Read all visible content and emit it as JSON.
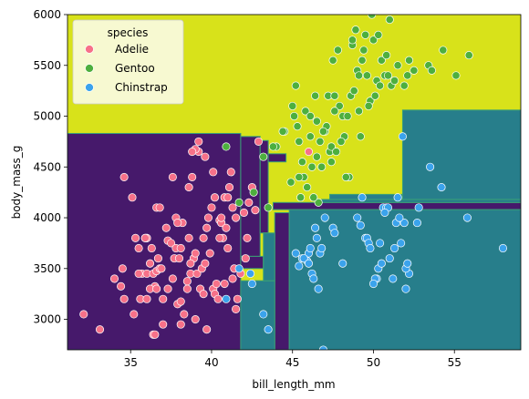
{
  "chart_data": {
    "type": "scatter",
    "title": "",
    "xlabel": "bill_length_mm",
    "ylabel": "body_mass_g",
    "xlim": [
      31.1,
      59.1
    ],
    "ylim": [
      2700,
      6000
    ],
    "xticks": [
      35,
      40,
      45,
      50,
      55
    ],
    "yticks": [
      3000,
      3500,
      4000,
      4500,
      5000,
      5500,
      6000
    ],
    "grid": false,
    "legend": {
      "title": "species",
      "placement": "top-left"
    },
    "background": {
      "type": "decision-regions",
      "colors": {
        "purple": "#46196b",
        "teal": "#277e8b",
        "yellow": "#d8e21a",
        "boundary": "#3aa276"
      },
      "regions": [
        {
          "class": "Adelie",
          "color": "purple",
          "x": [
            31.1,
            41.8
          ],
          "y": [
            2700,
            4830
          ]
        },
        {
          "class": "Adelie",
          "color": "purple",
          "x": [
            41.8,
            43.0
          ],
          "y": [
            3620,
            4800
          ]
        },
        {
          "class": "Adelie",
          "color": "purple",
          "x": [
            41.8,
            43.2
          ],
          "y": [
            3500,
            3620
          ]
        },
        {
          "class": "Adelie",
          "color": "purple",
          "x": [
            43.0,
            43.5
          ],
          "y": [
            3850,
            4760
          ]
        },
        {
          "class": "Adelie",
          "color": "purple",
          "x": [
            43.9,
            44.8
          ],
          "y": [
            2700,
            4050
          ]
        },
        {
          "class": "Adelie",
          "color": "purple",
          "x": [
            43.5,
            44.6
          ],
          "y": [
            4550,
            4630
          ]
        },
        {
          "class": "Adelie",
          "color": "purple",
          "x": [
            43.8,
            59.1
          ],
          "y": [
            4080,
            4150
          ]
        },
        {
          "class": "Chinstrap",
          "color": "teal",
          "x": [
            41.8,
            43.9
          ],
          "y": [
            2700,
            3380
          ]
        },
        {
          "class": "Chinstrap",
          "color": "teal",
          "x": [
            43.2,
            43.9
          ],
          "y": [
            3380,
            3850
          ]
        },
        {
          "class": "Chinstrap",
          "color": "teal",
          "x": [
            44.8,
            59.1
          ],
          "y": [
            2700,
            4080
          ]
        },
        {
          "class": "Chinstrap",
          "color": "teal",
          "x": [
            46.8,
            59.1
          ],
          "y": [
            4150,
            4180
          ]
        },
        {
          "class": "Chinstrap",
          "color": "teal",
          "x": [
            51.8,
            59.1
          ],
          "y": [
            4180,
            5060
          ]
        },
        {
          "class": "Chinstrap",
          "color": "teal",
          "x": [
            47.3,
            51.8
          ],
          "y": [
            4180,
            4230
          ]
        }
      ]
    },
    "series": [
      {
        "name": "Adelie",
        "color": "#f77189",
        "points": [
          [
            32.1,
            3050
          ],
          [
            33.1,
            2900
          ],
          [
            34.6,
            3200
          ],
          [
            34.0,
            3400
          ],
          [
            34.5,
            3500
          ],
          [
            34.4,
            3325
          ],
          [
            34.6,
            4400
          ],
          [
            35.1,
            4200
          ],
          [
            35.3,
            3800
          ],
          [
            35.5,
            3700
          ],
          [
            35.7,
            3450
          ],
          [
            35.9,
            3800
          ],
          [
            35.2,
            3050
          ],
          [
            35.6,
            3200
          ],
          [
            36.0,
            3450
          ],
          [
            36.0,
            3800
          ],
          [
            36.2,
            3550
          ],
          [
            36.0,
            3200
          ],
          [
            36.3,
            3700
          ],
          [
            36.4,
            3450
          ],
          [
            36.5,
            3325
          ],
          [
            36.6,
            3475
          ],
          [
            36.7,
            3600
          ],
          [
            36.8,
            3500
          ],
          [
            36.0,
            3800
          ],
          [
            36.2,
            3300
          ],
          [
            36.4,
            2850
          ],
          [
            36.5,
            2850
          ],
          [
            36.6,
            4100
          ],
          [
            36.9,
            3500
          ],
          [
            37.0,
            3200
          ],
          [
            37.2,
            3900
          ],
          [
            37.3,
            3775
          ],
          [
            37.5,
            3750
          ],
          [
            37.6,
            3400
          ],
          [
            37.7,
            3600
          ],
          [
            37.8,
            3700
          ],
          [
            37.8,
            4000
          ],
          [
            37.9,
            3150
          ],
          [
            38.0,
            3600
          ],
          [
            38.1,
            3700
          ],
          [
            38.2,
            3950
          ],
          [
            38.3,
            3050
          ],
          [
            38.1,
            3175
          ],
          [
            38.5,
            3375
          ],
          [
            38.6,
            3800
          ],
          [
            38.7,
            3450
          ],
          [
            38.8,
            4400
          ],
          [
            38.9,
            3600
          ],
          [
            39.0,
            3650
          ],
          [
            39.1,
            3450
          ],
          [
            39.2,
            4650
          ],
          [
            39.3,
            3300
          ],
          [
            39.4,
            3500
          ],
          [
            39.5,
            3800
          ],
          [
            39.6,
            3550
          ],
          [
            39.7,
            3900
          ],
          [
            39.8,
            4000
          ],
          [
            39.9,
            3650
          ],
          [
            40.0,
            4100
          ],
          [
            40.1,
            3300
          ],
          [
            40.2,
            3250
          ],
          [
            40.3,
            3350
          ],
          [
            40.4,
            3200
          ],
          [
            40.5,
            3975
          ],
          [
            40.6,
            3950
          ],
          [
            40.7,
            3800
          ],
          [
            40.8,
            4200
          ],
          [
            40.9,
            3900
          ],
          [
            41.0,
            3700
          ],
          [
            41.1,
            4300
          ],
          [
            41.2,
            4450
          ],
          [
            41.3,
            3400
          ],
          [
            41.4,
            3500
          ],
          [
            41.5,
            4000
          ],
          [
            41.6,
            3200
          ],
          [
            41.8,
            3450
          ],
          [
            42.0,
            4050
          ],
          [
            42.1,
            3600
          ],
          [
            42.2,
            3800
          ],
          [
            42.3,
            4150
          ],
          [
            42.5,
            4300
          ],
          [
            42.7,
            4075
          ],
          [
            39.0,
            4675
          ],
          [
            39.6,
            4600
          ],
          [
            38.8,
            4650
          ],
          [
            38.6,
            4300
          ],
          [
            37.6,
            4400
          ],
          [
            36.8,
            4100
          ],
          [
            35.9,
            3800
          ],
          [
            37.3,
            3300
          ],
          [
            38.5,
            3300
          ],
          [
            39.0,
            3000
          ],
          [
            40.1,
            4450
          ],
          [
            40.6,
            4000
          ],
          [
            41.0,
            4200
          ],
          [
            39.5,
            3250
          ],
          [
            38.7,
            3550
          ],
          [
            37.9,
            3950
          ],
          [
            36.6,
            3300
          ],
          [
            35.5,
            3450
          ],
          [
            40.8,
            3350
          ],
          [
            41.3,
            4100
          ],
          [
            42.9,
            4750
          ],
          [
            46.0,
            4650
          ],
          [
            40.5,
            3800
          ],
          [
            39.7,
            2900
          ],
          [
            38.1,
            2950
          ],
          [
            37.0,
            2950
          ],
          [
            39.2,
            4750
          ],
          [
            40.2,
            4200
          ],
          [
            41.5,
            3100
          ]
        ]
      },
      {
        "name": "Gentoo",
        "color": "#4daf3e",
        "points": [
          [
            40.9,
            4700
          ],
          [
            41.7,
            4150
          ],
          [
            42.6,
            4250
          ],
          [
            43.2,
            4600
          ],
          [
            43.5,
            4100
          ],
          [
            44.0,
            4700
          ],
          [
            44.5,
            4850
          ],
          [
            44.9,
            4350
          ],
          [
            45.1,
            5000
          ],
          [
            45.2,
            5300
          ],
          [
            45.3,
            4900
          ],
          [
            45.4,
            4750
          ],
          [
            45.5,
            4200
          ],
          [
            45.7,
            4400
          ],
          [
            45.8,
            5050
          ],
          [
            46.1,
            4800
          ],
          [
            46.2,
            4500
          ],
          [
            46.4,
            5200
          ],
          [
            46.5,
            4950
          ],
          [
            46.6,
            4150
          ],
          [
            46.8,
            4500
          ],
          [
            47.0,
            4850
          ],
          [
            47.2,
            5200
          ],
          [
            47.3,
            4650
          ],
          [
            47.4,
            4700
          ],
          [
            47.5,
            5550
          ],
          [
            47.6,
            5200
          ],
          [
            47.7,
            4650
          ],
          [
            47.8,
            5650
          ],
          [
            48.1,
            5000
          ],
          [
            48.2,
            4800
          ],
          [
            48.4,
            5000
          ],
          [
            48.5,
            4400
          ],
          [
            48.6,
            5200
          ],
          [
            48.7,
            5700
          ],
          [
            48.8,
            5250
          ],
          [
            49.0,
            5450
          ],
          [
            49.1,
            5050
          ],
          [
            49.2,
            4800
          ],
          [
            49.3,
            5550
          ],
          [
            49.4,
            5650
          ],
          [
            49.5,
            5800
          ],
          [
            49.6,
            5400
          ],
          [
            49.8,
            5150
          ],
          [
            50.0,
            5750
          ],
          [
            50.1,
            5200
          ],
          [
            50.2,
            5350
          ],
          [
            50.4,
            5300
          ],
          [
            50.5,
            5550
          ],
          [
            50.7,
            5400
          ],
          [
            50.8,
            5600
          ],
          [
            51.1,
            5300
          ],
          [
            51.3,
            5350
          ],
          [
            51.5,
            5500
          ],
          [
            52.1,
            5400
          ],
          [
            52.2,
            5550
          ],
          [
            52.5,
            5450
          ],
          [
            53.4,
            5500
          ],
          [
            54.3,
            5650
          ],
          [
            55.1,
            5400
          ],
          [
            55.9,
            5600
          ],
          [
            45.9,
            4300
          ],
          [
            46.3,
            4200
          ],
          [
            46.7,
            4750
          ],
          [
            47.1,
            4900
          ],
          [
            47.9,
            5100
          ],
          [
            48.3,
            4400
          ],
          [
            49.7,
            5100
          ],
          [
            50.3,
            5800
          ],
          [
            51.0,
            5950
          ],
          [
            49.9,
            6000
          ],
          [
            48.9,
            5850
          ],
          [
            47.6,
            5050
          ],
          [
            46.9,
            4850
          ],
          [
            45.6,
            4550
          ],
          [
            44.4,
            4850
          ],
          [
            43.8,
            4700
          ],
          [
            45.0,
            5100
          ],
          [
            46.1,
            5000
          ],
          [
            47.4,
            4550
          ],
          [
            48.0,
            4750
          ],
          [
            49.1,
            5400
          ],
          [
            50.9,
            5400
          ],
          [
            51.9,
            5300
          ],
          [
            53.6,
            5450
          ],
          [
            48.7,
            5750
          ],
          [
            46.5,
            4600
          ],
          [
            45.4,
            4400
          ]
        ]
      },
      {
        "name": "Chinstrap",
        "color": "#3ba3ec",
        "points": [
          [
            40.9,
            3200
          ],
          [
            41.7,
            3500
          ],
          [
            42.4,
            3450
          ],
          [
            42.5,
            3350
          ],
          [
            43.2,
            3050
          ],
          [
            43.5,
            2900
          ],
          [
            45.2,
            3650
          ],
          [
            45.4,
            3525
          ],
          [
            45.6,
            3600
          ],
          [
            45.9,
            3575
          ],
          [
            46.0,
            3650
          ],
          [
            46.1,
            3700
          ],
          [
            46.2,
            3450
          ],
          [
            46.4,
            3900
          ],
          [
            46.5,
            3800
          ],
          [
            46.6,
            3300
          ],
          [
            46.7,
            3650
          ],
          [
            46.8,
            3700
          ],
          [
            46.9,
            2700
          ],
          [
            47.0,
            4000
          ],
          [
            47.5,
            3900
          ],
          [
            48.1,
            3550
          ],
          [
            49.3,
            4200
          ],
          [
            49.5,
            3800
          ],
          [
            49.6,
            3800
          ],
          [
            49.7,
            3750
          ],
          [
            49.8,
            3700
          ],
          [
            50.2,
            3400
          ],
          [
            50.3,
            3500
          ],
          [
            50.5,
            3550
          ],
          [
            50.6,
            4100
          ],
          [
            50.8,
            4100
          ],
          [
            50.9,
            4100
          ],
          [
            51.0,
            3600
          ],
          [
            51.3,
            3700
          ],
          [
            51.4,
            3950
          ],
          [
            51.5,
            4200
          ],
          [
            51.7,
            3750
          ],
          [
            51.9,
            3950
          ],
          [
            52.0,
            3300
          ],
          [
            52.2,
            3450
          ],
          [
            52.8,
            4100
          ],
          [
            53.5,
            4500
          ],
          [
            54.2,
            4300
          ],
          [
            55.8,
            4000
          ],
          [
            58.0,
            3700
          ],
          [
            51.2,
            3400
          ],
          [
            50.1,
            3400
          ],
          [
            49.0,
            4000
          ],
          [
            47.6,
            3850
          ],
          [
            50.7,
            4050
          ],
          [
            52.7,
            3950
          ],
          [
            51.6,
            4000
          ],
          [
            45.7,
            3600
          ],
          [
            46.3,
            3400
          ],
          [
            49.2,
            3925
          ],
          [
            51.8,
            4800
          ],
          [
            50.4,
            3750
          ],
          [
            52.0,
            3500
          ],
          [
            46.0,
            3550
          ],
          [
            52.1,
            3550
          ],
          [
            50.0,
            3350
          ]
        ]
      }
    ]
  }
}
